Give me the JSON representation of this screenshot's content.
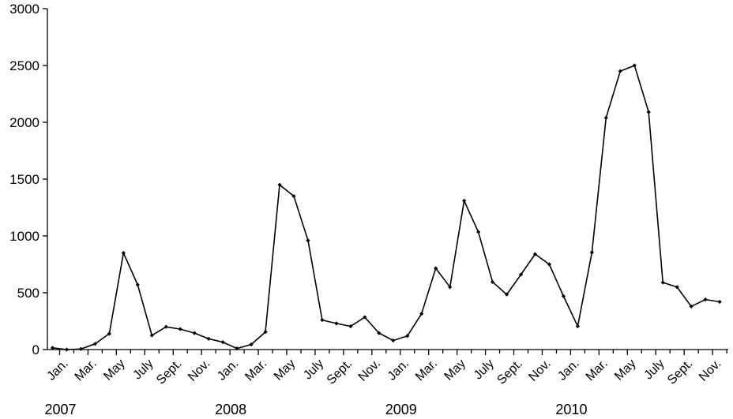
{
  "chart_data": {
    "type": "line",
    "title": "",
    "xlabel": "",
    "ylabel": "",
    "ylim": [
      0,
      3000
    ],
    "yticks": [
      0,
      500,
      1000,
      1500,
      2000,
      2500,
      3000
    ],
    "grid": false,
    "x_tick_labels": [
      "Jan.",
      "Mar.",
      "May",
      "July",
      "Sept.",
      "Nov.",
      "Jan.",
      "Mar.",
      "May",
      "July",
      "Sept.",
      "Nov.",
      "Jan.",
      "Mar.",
      "May",
      "July",
      "Sept.",
      "Nov.",
      "Jan.",
      "Mar.",
      "May",
      "July",
      "Sept.",
      "Nov."
    ],
    "year_labels": [
      "2007",
      "2008",
      "2009",
      "2010"
    ],
    "series": [
      {
        "values": [
          15,
          0,
          5,
          50,
          140,
          850,
          570,
          125,
          200,
          180,
          145,
          95,
          65,
          10,
          45,
          155,
          1450,
          1350,
          960,
          260,
          230,
          205,
          285,
          145,
          80,
          120,
          315,
          715,
          550,
          1310,
          1035,
          595,
          485,
          660,
          840,
          750,
          470,
          205,
          855,
          2040,
          2450,
          2500,
          2090,
          590,
          550,
          380,
          440,
          420
        ]
      }
    ]
  }
}
